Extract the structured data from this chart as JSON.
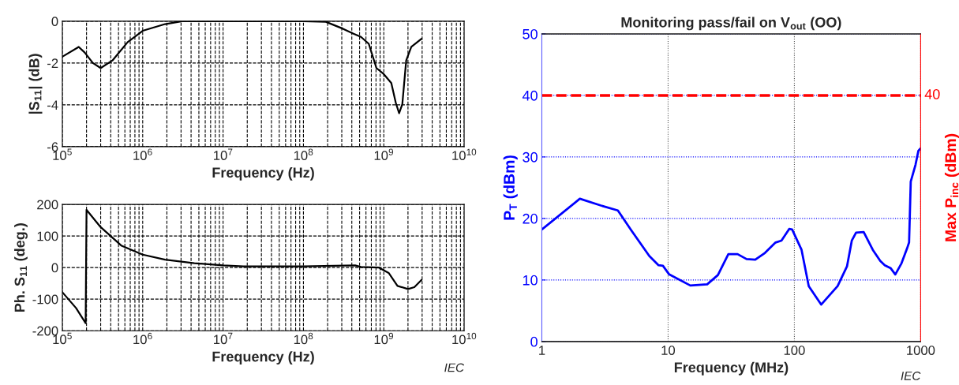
{
  "chart_data": [
    {
      "type": "line",
      "ylabel": "|S$_{11}$| (dB)",
      "xlabel": "Frequency (Hz)",
      "log": "x",
      "grid": true,
      "legend": false,
      "xlim": [
        100000,
        10000000000
      ],
      "xticks": [
        {
          "value": 100000,
          "label": "10$^{5}$"
        },
        {
          "value": 1000000,
          "label": "10$^{6}$"
        },
        {
          "value": 10000000,
          "label": "10$^{7}$"
        },
        {
          "value": 100000000,
          "label": "10$^{8}$"
        },
        {
          "value": 1000000000,
          "label": "10$^{9}$"
        },
        {
          "value": 10000000000,
          "label": "10$^{10}$"
        }
      ],
      "ylim": [
        -6,
        0
      ],
      "yticks": [
        -6,
        -4,
        -2,
        0
      ],
      "series": [
        {
          "color": "#000000",
          "x": [
            100000,
            160000,
            190000,
            240000,
            300000,
            420000,
            650000,
            1000000,
            1900000,
            3100000,
            7400000,
            10000000,
            30000000,
            100000000,
            190000000,
            310000000,
            420000000,
            520000000,
            650000000,
            810000000,
            1000000000,
            1240000000,
            1410000000,
            1550000000,
            1700000000,
            1900000000,
            2200000000,
            2950000000
          ],
          "values": [
            -1.7,
            -1.23,
            -1.5,
            -2.0,
            -2.24,
            -1.88,
            -1.0,
            -0.46,
            -0.14,
            0,
            0,
            0,
            0,
            0,
            -0.03,
            -0.36,
            -0.6,
            -0.75,
            -1.08,
            -2.24,
            -2.53,
            -2.96,
            -3.9,
            -4.4,
            -3.97,
            -1.88,
            -1.23,
            -0.84
          ]
        }
      ]
    },
    {
      "type": "line",
      "ylabel": "Ph. S$_{11}$ (deg.)",
      "xlabel": "Frequency (Hz)",
      "log": "x",
      "grid": true,
      "legend": false,
      "annotations": [
        "IEC"
      ],
      "xlim": [
        100000,
        10000000000
      ],
      "xticks": [
        {
          "value": 100000,
          "label": "10$^{5}$"
        },
        {
          "value": 1000000,
          "label": "10$^{6}$"
        },
        {
          "value": 10000000,
          "label": "10$^{7}$"
        },
        {
          "value": 100000000,
          "label": "10$^{8}$"
        },
        {
          "value": 1000000000,
          "label": "10$^{9}$"
        },
        {
          "value": 10000000000,
          "label": "10$^{10}$"
        }
      ],
      "ylim": [
        -200,
        200
      ],
      "yticks": [
        -200,
        -100,
        0,
        100,
        200
      ],
      "series": [
        {
          "color": "#000000",
          "x": [
            100000,
            148000,
            195000,
            200000,
            300000,
            540000,
            1000000,
            1900000,
            4400000,
            10000000,
            18000000,
            100000000,
            440000000,
            520000000,
            870000000,
            1150000000,
            1480000000,
            2000000000,
            2400000000,
            2950000000
          ],
          "values": [
            -78,
            -128,
            -176,
            183,
            128,
            70,
            41,
            25,
            14,
            7,
            4,
            4,
            7,
            2,
            0,
            -17,
            -58,
            -68,
            -62,
            -39
          ]
        }
      ]
    },
    {
      "type": "line",
      "title": "Monitoring pass/fail on V$_{out}$ (OO)",
      "xlabel": "Frequency (MHz)",
      "ylabel": "P$_{T}$ (dBm)",
      "y2label": "Max P$_{inc}$ (dBm)",
      "log": "x",
      "grid": true,
      "legend": false,
      "annotations": [
        "IEC"
      ],
      "xlim": [
        1,
        1000
      ],
      "xticks": [
        1,
        10,
        100,
        1000
      ],
      "ylim": [
        0,
        50
      ],
      "yticks": [
        0,
        10,
        20,
        30,
        40,
        50
      ],
      "ref_lines": [
        {
          "axis": "y",
          "value": 40,
          "label": "40",
          "color": "#ff0000",
          "line_style": "dashed"
        }
      ],
      "series": [
        {
          "color": "#0000ff",
          "x": [
            1,
            2,
            2.94,
            4,
            5.1,
            7.1,
            8.4,
            9.1,
            10.2,
            15,
            20.4,
            24.8,
            30,
            35.5,
            41.8,
            49,
            58.5,
            71,
            79,
            91,
            96,
            114,
            130,
            163,
            220,
            261,
            285,
            308,
            354,
            418,
            479,
            520,
            580,
            630,
            705,
            780,
            810,
            835,
            910,
            960,
            1000
          ],
          "values": [
            18.2,
            23.2,
            22.1,
            21.3,
            18.1,
            13.9,
            12.4,
            12.3,
            10.9,
            9.1,
            9.3,
            10.8,
            14.2,
            14.2,
            13.4,
            13.3,
            14.4,
            16.1,
            16.4,
            18.3,
            18.2,
            14.9,
            9.0,
            6.0,
            9.0,
            12.2,
            16.4,
            17.7,
            17.8,
            14.9,
            13.1,
            12.4,
            11.9,
            10.9,
            12.7,
            15.1,
            16.1,
            26.0,
            28.7,
            31.0,
            31.4
          ]
        }
      ]
    }
  ]
}
